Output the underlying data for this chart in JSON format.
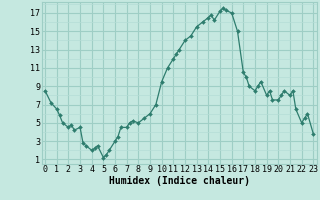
{
  "x": [
    0,
    0.5,
    1,
    1.25,
    1.5,
    2,
    2.25,
    2.5,
    3,
    3.25,
    3.5,
    4,
    4.25,
    4.5,
    5,
    5.25,
    5.5,
    6,
    6.25,
    6.5,
    7,
    7.25,
    7.5,
    8,
    8.5,
    9,
    9.5,
    10,
    10.5,
    11,
    11.25,
    11.5,
    12,
    12.5,
    13,
    13.5,
    14,
    14.25,
    14.5,
    15,
    15.25,
    15.5,
    16,
    16.5,
    17,
    17.25,
    17.5,
    18,
    18.25,
    18.5,
    19,
    19.25,
    19.5,
    20,
    20.25,
    20.5,
    21,
    21.25,
    21.5,
    22,
    22.25,
    22.5,
    23
  ],
  "y": [
    8.5,
    7.2,
    6.5,
    5.8,
    5.0,
    4.5,
    4.8,
    4.2,
    4.5,
    2.8,
    2.5,
    2.0,
    2.2,
    2.5,
    1.2,
    1.5,
    2.0,
    3.0,
    3.5,
    4.5,
    4.5,
    5.0,
    5.2,
    5.0,
    5.5,
    6.0,
    7.0,
    9.5,
    11.0,
    12.0,
    12.5,
    13.0,
    14.0,
    14.5,
    15.5,
    16.0,
    16.5,
    16.8,
    16.2,
    17.2,
    17.5,
    17.3,
    17.0,
    15.0,
    10.5,
    10.0,
    9.0,
    8.5,
    9.0,
    9.5,
    8.0,
    8.5,
    7.5,
    7.5,
    8.0,
    8.5,
    8.0,
    8.5,
    6.5,
    5.0,
    5.5,
    6.0,
    3.8
  ],
  "line_color": "#2e7d6e",
  "marker": "D",
  "markersize": 2.0,
  "bg_color": "#c5e8e0",
  "grid_major_color": "#9ecec5",
  "grid_minor_color": "#b5ddd6",
  "xlabel": "Humidex (Indice chaleur)",
  "xlabel_fontsize": 7,
  "ylabel_ticks": [
    1,
    3,
    5,
    7,
    9,
    11,
    13,
    15,
    17
  ],
  "xtick_labels": [
    "0",
    "1",
    "2",
    "3",
    "4",
    "5",
    "6",
    "7",
    "8",
    "9",
    "10",
    "11",
    "12",
    "13",
    "14",
    "15",
    "16",
    "17",
    "18",
    "19",
    "20",
    "21",
    "22",
    "23"
  ],
  "xlim": [
    -0.3,
    23.3
  ],
  "ylim": [
    0.5,
    18.2
  ],
  "tick_fontsize": 6
}
